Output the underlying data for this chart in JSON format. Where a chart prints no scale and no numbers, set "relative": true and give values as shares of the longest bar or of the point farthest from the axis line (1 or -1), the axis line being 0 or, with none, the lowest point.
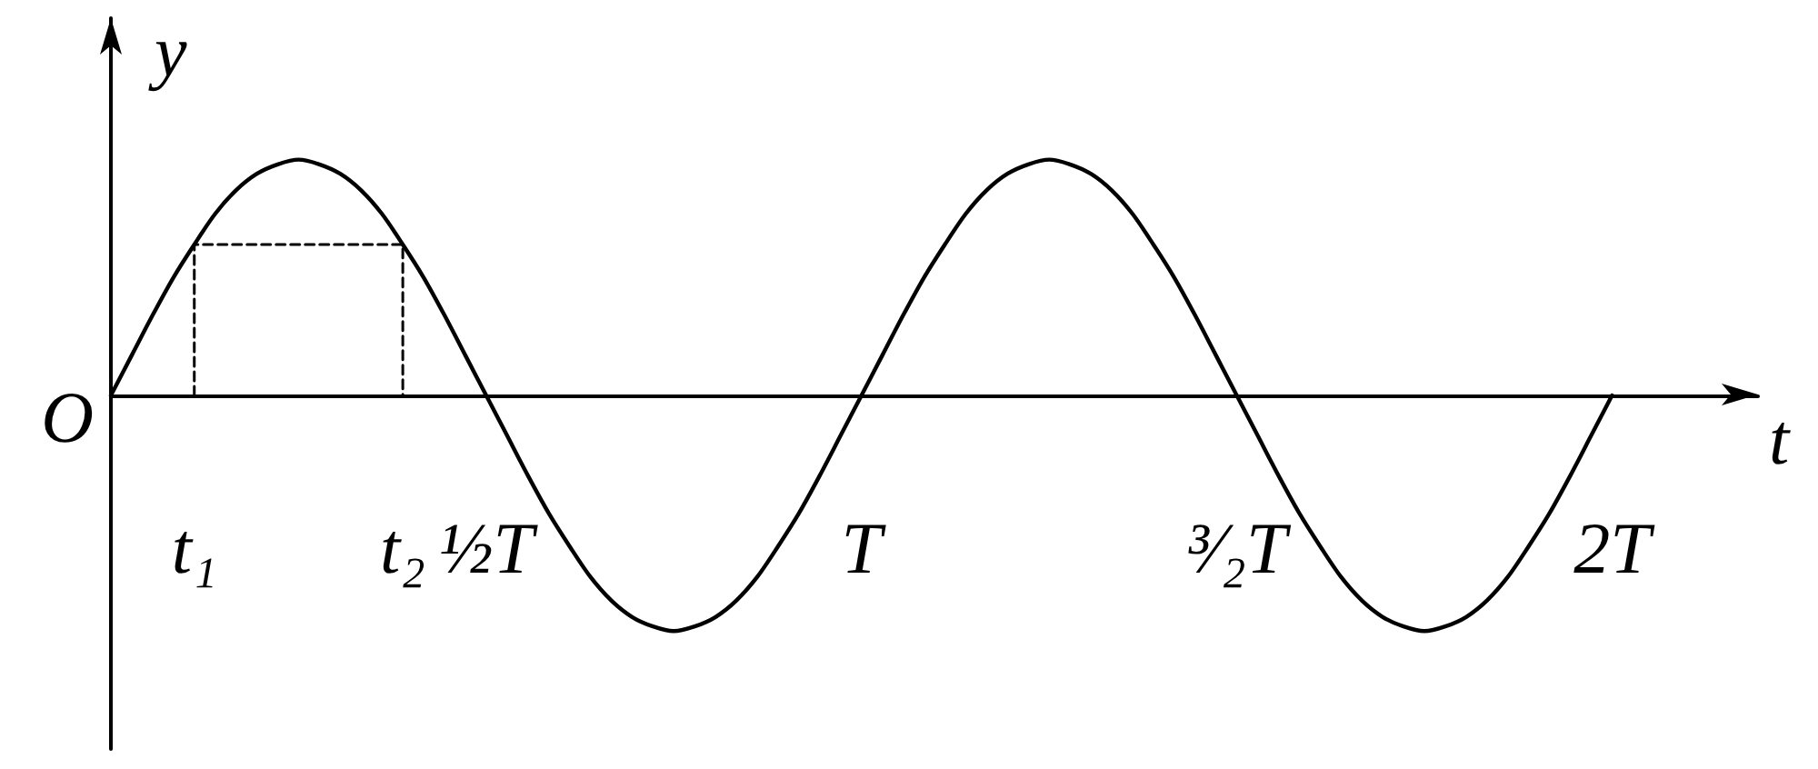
{
  "chart_data": {
    "type": "line",
    "xlabel": "t",
    "ylabel": "y",
    "relative": true,
    "annotations": [
      "O"
    ],
    "categories": [
      null,
      null,
      null,
      null,
      "t₁",
      null,
      null,
      null,
      null,
      null,
      null,
      null,
      null,
      null,
      "t₂",
      null,
      null,
      null,
      "½T",
      null,
      null,
      null,
      null,
      null,
      null,
      null,
      null,
      null,
      null,
      null,
      null,
      null,
      null,
      null,
      null,
      null,
      "T",
      null,
      null,
      null,
      null,
      null,
      null,
      null,
      null,
      null,
      null,
      null,
      null,
      null,
      null,
      null,
      null,
      null,
      "³⁄₂T",
      null,
      null,
      null,
      null,
      null,
      null,
      null,
      null,
      null,
      null,
      null,
      null,
      null,
      null,
      null,
      null,
      null,
      "2T"
    ],
    "series": [
      {
        "color": "#000000",
        "values": [
          0,
          0.17,
          0.34,
          0.5,
          0.64,
          0.77,
          0.87,
          0.94,
          0.98,
          1,
          0.98,
          0.94,
          0.87,
          0.77,
          0.64,
          0.5,
          0.34,
          0.17,
          0,
          -0.17,
          -0.34,
          -0.5,
          -0.64,
          -0.77,
          -0.87,
          -0.94,
          -0.98,
          -1,
          -0.98,
          -0.94,
          -0.87,
          -0.77,
          -0.64,
          -0.5,
          -0.34,
          -0.17,
          0,
          0.17,
          0.34,
          0.5,
          0.64,
          0.77,
          0.87,
          0.94,
          0.98,
          1,
          0.98,
          0.94,
          0.87,
          0.77,
          0.64,
          0.5,
          0.34,
          0.17,
          0,
          -0.17,
          -0.34,
          -0.5,
          -0.64,
          -0.77,
          -0.87,
          -0.94,
          -0.98,
          -1,
          -0.98,
          -0.94,
          -0.87,
          -0.77,
          -0.64,
          -0.5,
          -0.34,
          -0.17,
          0
        ]
      },
      {
        "color": "#000000",
        "line_style": "dashed",
        "x": [
          "t₁",
          "t₁",
          "t₂",
          "t₂"
        ],
        "values": [
          0,
          0.64,
          0.64,
          0
        ]
      }
    ]
  }
}
